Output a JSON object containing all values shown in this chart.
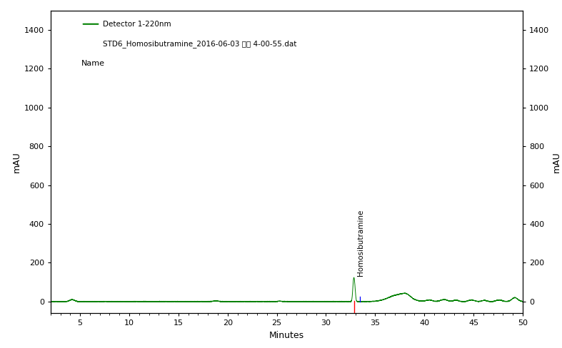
{
  "title_line1": "Detector 1-220nm",
  "title_line2": "STD6_Homosibutramine_2016-06-03 오후 4-00-55.dat",
  "title_line3": "Name",
  "xlabel": "Minutes",
  "ylabel_left": "mAU",
  "ylabel_right": "mAU",
  "xlim": [
    2,
    50
  ],
  "ylim": [
    -60,
    1500
  ],
  "yticks": [
    0,
    200,
    400,
    600,
    800,
    1000,
    1200,
    1400
  ],
  "xticks": [
    5,
    10,
    15,
    20,
    25,
    30,
    35,
    40,
    45,
    50
  ],
  "peak_label": "Homosibutramine",
  "peak_x": 33.0,
  "line_color": "#008000",
  "red_line_x": 32.85,
  "blue_line_x": 33.45,
  "background_color": "#ffffff"
}
